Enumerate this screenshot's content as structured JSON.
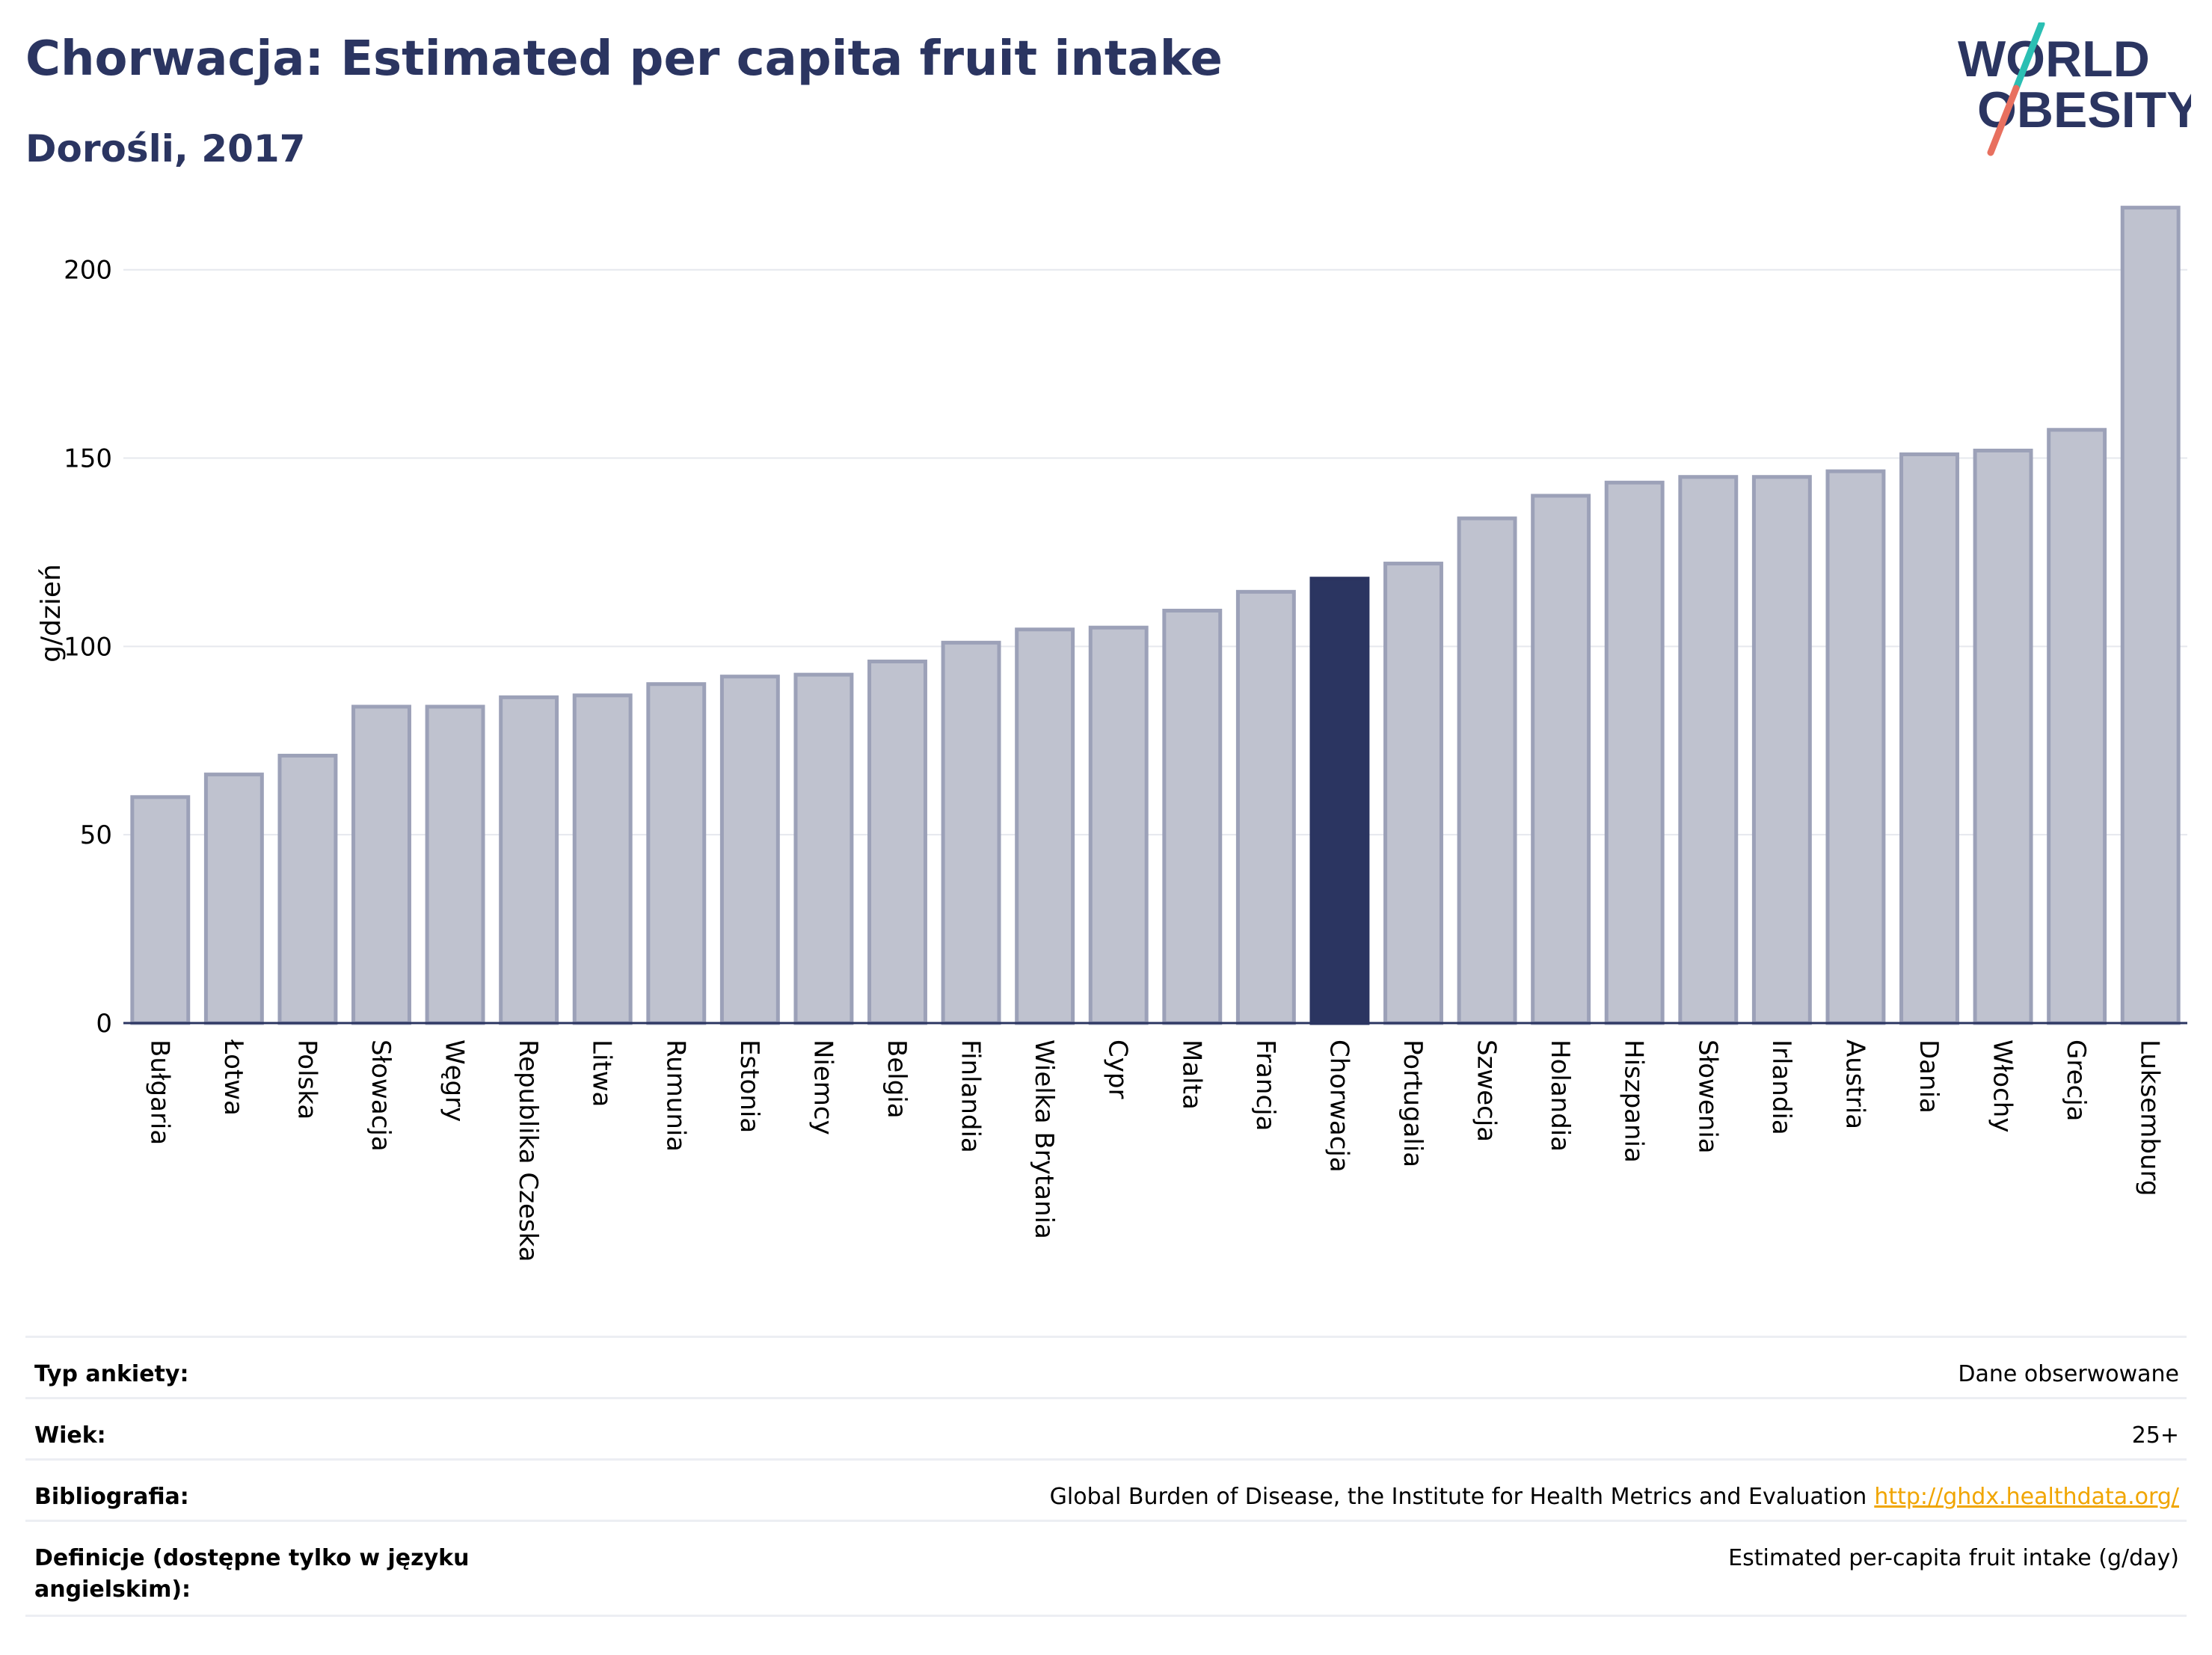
{
  "header": {
    "title": "Chorwacja: Estimated per capita fruit intake",
    "subtitle": "Dorośli, 2017"
  },
  "logo": {
    "line1": "WORLD",
    "line2": "OBESITY",
    "colors": {
      "text": "#2b3561",
      "slash_top": "#2bbfb3",
      "slash_bottom": "#e8705f"
    }
  },
  "chart_data": {
    "type": "bar",
    "ylabel": "g/dzień",
    "ylim": [
      0,
      220
    ],
    "yticks": [
      0,
      50,
      100,
      150,
      200
    ],
    "grid": true,
    "highlight": "Chorwacja",
    "colors": {
      "bar": "#bfc2cf",
      "bar_border": "#9ca1b8",
      "highlight": "#2b3561",
      "grid": "#e6e8ee",
      "axis": "#2b3561"
    },
    "categories": [
      "Bułgaria",
      "Łotwa",
      "Polska",
      "Słowacja",
      "Węgry",
      "Republika Czeska",
      "Litwa",
      "Rumunia",
      "Estonia",
      "Niemcy",
      "Belgia",
      "Finlandia",
      "Wielka Brytania",
      "Cypr",
      "Malta",
      "Francja",
      "Chorwacja",
      "Portugalia",
      "Szwecja",
      "Holandia",
      "Hiszpania",
      "Słowenia",
      "Irlandia",
      "Austria",
      "Dania",
      "Włochy",
      "Grecja",
      "Luksemburg"
    ],
    "values": [
      60,
      66,
      71,
      84,
      84,
      86.5,
      87,
      90,
      92,
      92.5,
      96,
      101,
      104.5,
      105,
      109.5,
      114.5,
      118,
      122,
      134,
      140,
      143.5,
      145,
      145,
      146.5,
      151,
      152,
      157.5,
      216.5
    ]
  },
  "info": [
    {
      "label": "Typ ankiety:",
      "value": "Dane obserwowane"
    },
    {
      "label": "Wiek:",
      "value": "25+"
    },
    {
      "label": "Bibliografia:",
      "value": "Global Burden of Disease, the Institute for Health Metrics and Evaluation",
      "link": "http://ghdx.healthdata.org/"
    },
    {
      "label": "Definicje (dostępne tylko w języku angielskim):",
      "value": "Estimated per-capita fruit intake (g/day)"
    }
  ]
}
